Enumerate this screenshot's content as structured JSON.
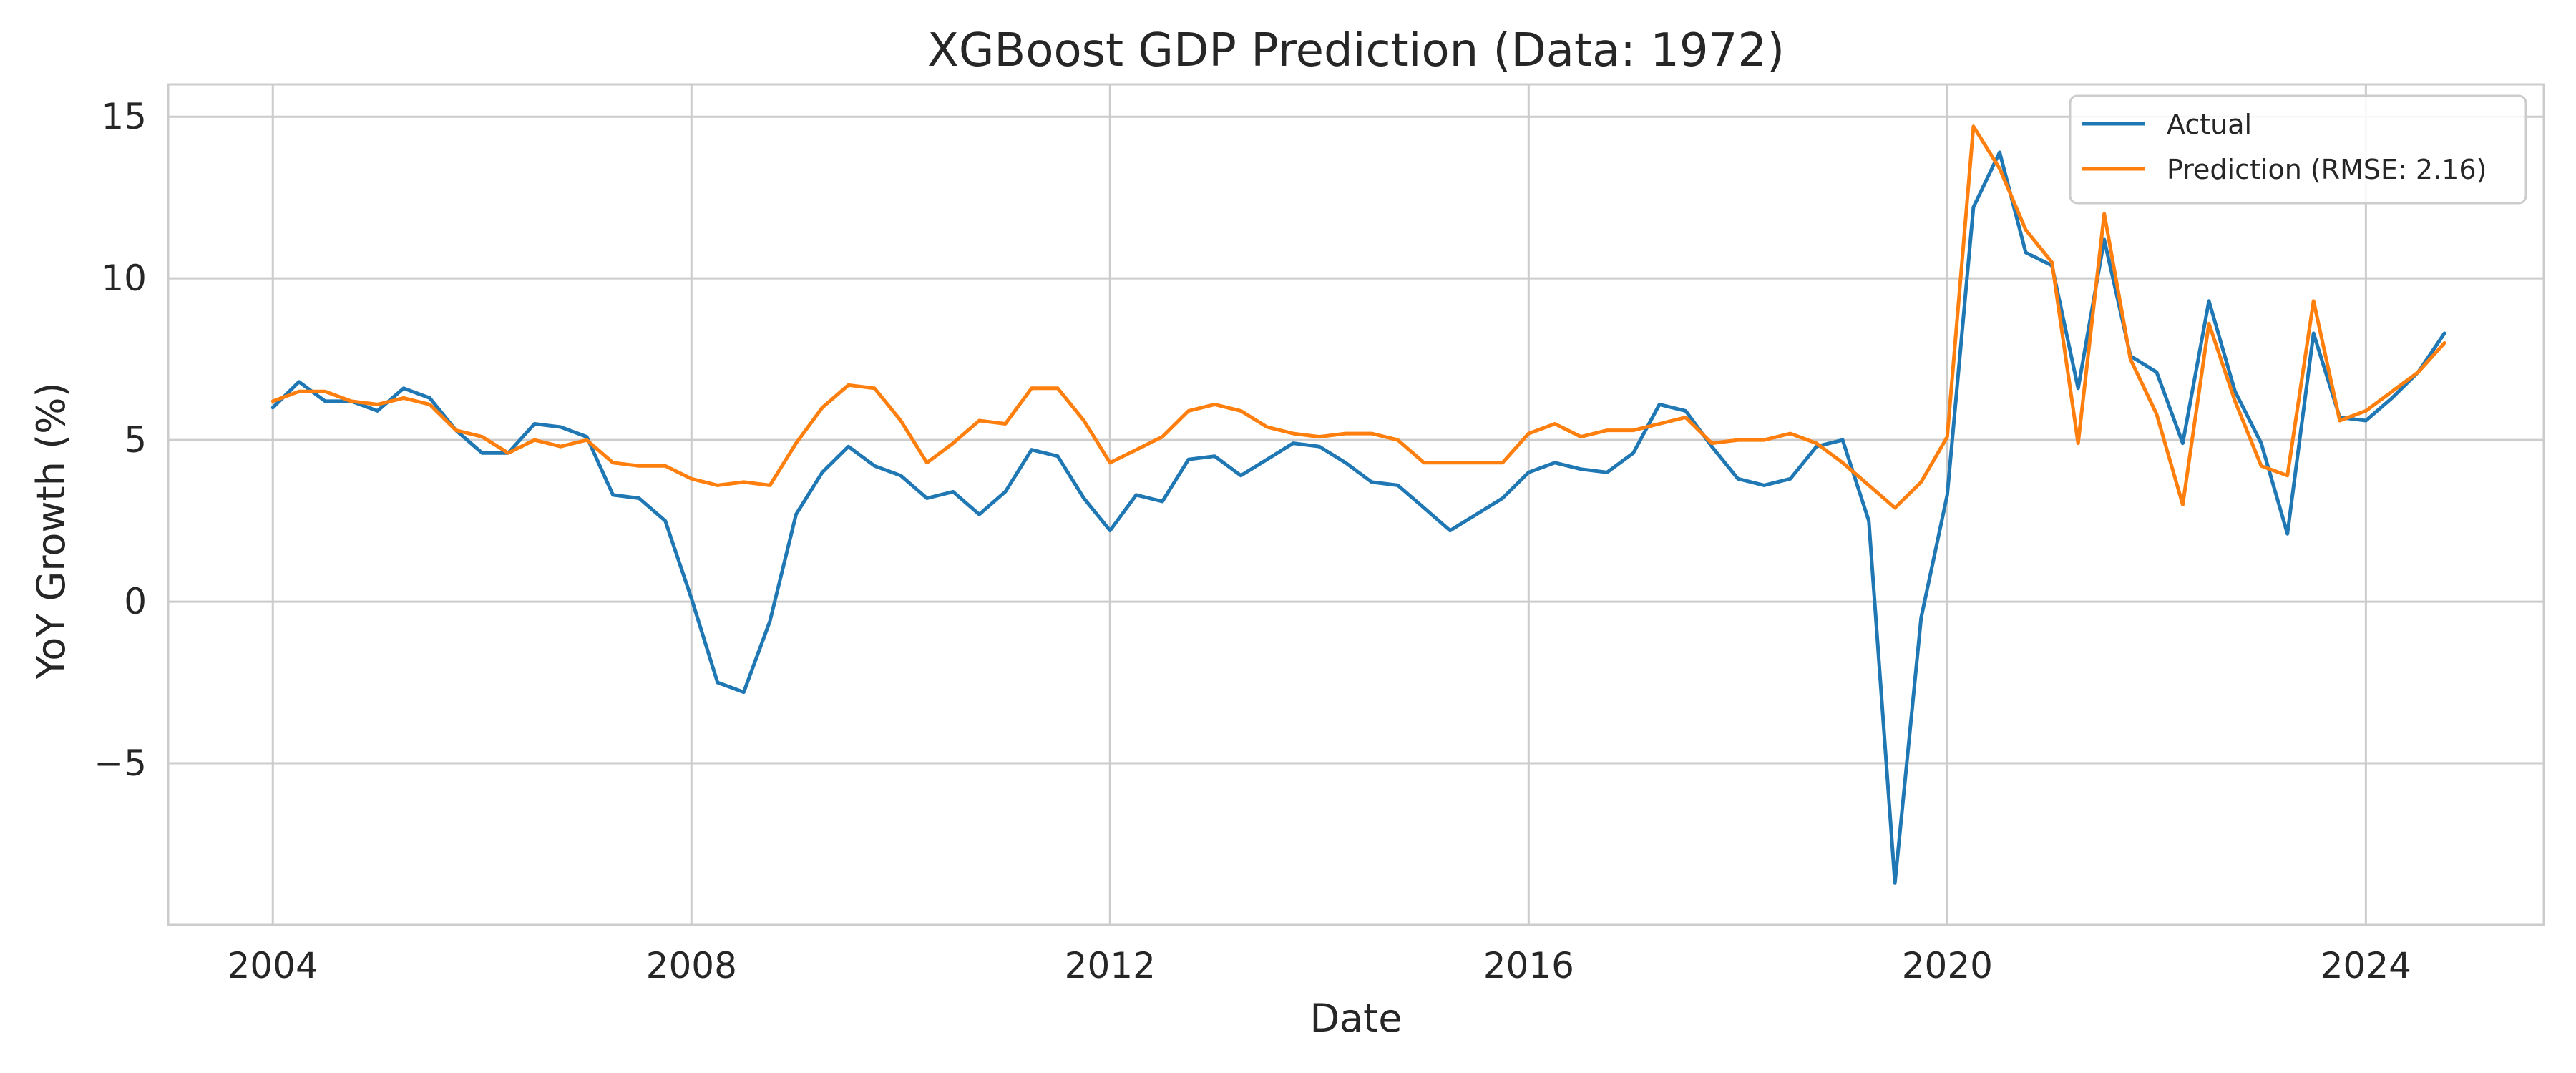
{
  "chart_data": {
    "type": "line",
    "title": "XGBoost GDP Prediction (Data: 1972)",
    "xlabel": "Date",
    "ylabel": "YoY Growth (%)",
    "xlim": [
      2003.0,
      2025.7
    ],
    "ylim": [
      -10.0,
      16.0
    ],
    "x_ticks": [
      2004,
      2008,
      2012,
      2016,
      2020,
      2024
    ],
    "x_tick_labels": [
      "2004",
      "2008",
      "2012",
      "2016",
      "2020",
      "2024"
    ],
    "y_ticks": [
      -5,
      0,
      5,
      10,
      15
    ],
    "y_tick_labels": [
      "−5",
      "0",
      "5",
      "10",
      "15"
    ],
    "grid": true,
    "legend_position": "top-right",
    "x": [
      2004.0,
      2004.25,
      2004.5,
      2004.75,
      2005.0,
      2005.25,
      2005.5,
      2005.75,
      2006.0,
      2006.25,
      2006.5,
      2006.75,
      2007.0,
      2007.25,
      2007.5,
      2007.75,
      2008.0,
      2008.25,
      2008.5,
      2008.75,
      2009.0,
      2009.25,
      2009.5,
      2009.75,
      2010.0,
      2010.25,
      2010.5,
      2010.75,
      2011.0,
      2011.25,
      2011.5,
      2011.75,
      2012.0,
      2012.25,
      2012.5,
      2012.75,
      2013.0,
      2013.25,
      2013.5,
      2013.75,
      2014.0,
      2014.25,
      2014.5,
      2014.75,
      2015.0,
      2015.25,
      2015.5,
      2015.75,
      2016.0,
      2016.25,
      2016.5,
      2016.75,
      2017.0,
      2017.25,
      2017.5,
      2017.75,
      2018.0,
      2018.25,
      2018.5,
      2018.75,
      2019.0,
      2019.25,
      2019.5,
      2019.75,
      2020.0,
      2020.25,
      2020.5,
      2020.75,
      2021.0,
      2021.25,
      2021.5,
      2021.75,
      2022.0,
      2022.25,
      2022.5,
      2022.75,
      2023.0,
      2023.25,
      2023.5,
      2023.75,
      2024.0,
      2024.25,
      2024.5,
      2024.75
    ],
    "series": [
      {
        "name": "Actual",
        "color": "#1f77b4",
        "values": [
          6.0,
          6.8,
          6.2,
          6.2,
          5.9,
          6.6,
          6.3,
          5.3,
          4.6,
          4.6,
          5.5,
          5.4,
          5.1,
          3.3,
          3.2,
          2.5,
          0.1,
          -2.5,
          -2.8,
          -0.6,
          2.7,
          4.0,
          4.8,
          4.2,
          3.9,
          3.2,
          3.4,
          2.7,
          3.4,
          4.7,
          4.5,
          3.2,
          2.2,
          3.3,
          3.1,
          4.4,
          4.5,
          3.9,
          4.4,
          4.9,
          4.8,
          4.3,
          3.7,
          3.6,
          2.9,
          2.2,
          2.7,
          3.2,
          4.0,
          4.3,
          4.1,
          4.0,
          4.6,
          6.1,
          5.9,
          4.8,
          3.8,
          3.6,
          3.8,
          4.8,
          5.0,
          2.5,
          -8.7,
          -0.5,
          3.3,
          12.2,
          13.9,
          10.8,
          10.4,
          6.6,
          11.2,
          7.6,
          7.1,
          4.9,
          9.3,
          6.5,
          4.9,
          2.1,
          8.3,
          5.7,
          5.6,
          6.3,
          7.1,
          8.3
        ]
      },
      {
        "name": "Prediction (RMSE: 2.16)",
        "color": "#ff7f0e",
        "values": [
          6.2,
          6.5,
          6.5,
          6.2,
          6.1,
          6.3,
          6.1,
          5.3,
          5.1,
          4.6,
          5.0,
          4.8,
          5.0,
          4.3,
          4.2,
          4.2,
          3.8,
          3.6,
          3.7,
          3.6,
          4.9,
          6.0,
          6.7,
          6.6,
          5.6,
          4.3,
          4.9,
          5.6,
          5.5,
          6.6,
          6.6,
          5.6,
          4.3,
          4.7,
          5.1,
          5.9,
          6.1,
          5.9,
          5.4,
          5.2,
          5.1,
          5.2,
          5.2,
          5.0,
          4.3,
          4.3,
          4.3,
          4.3,
          5.2,
          5.5,
          5.1,
          5.3,
          5.3,
          5.5,
          5.7,
          4.9,
          5.0,
          5.0,
          5.2,
          4.9,
          4.3,
          3.6,
          2.9,
          3.7,
          5.1,
          14.7,
          13.4,
          11.5,
          10.5,
          4.9,
          12.0,
          7.5,
          5.8,
          3.0,
          8.6,
          6.2,
          4.2,
          3.9,
          9.3,
          5.6,
          5.9,
          6.5,
          7.1,
          8.0
        ]
      }
    ]
  }
}
